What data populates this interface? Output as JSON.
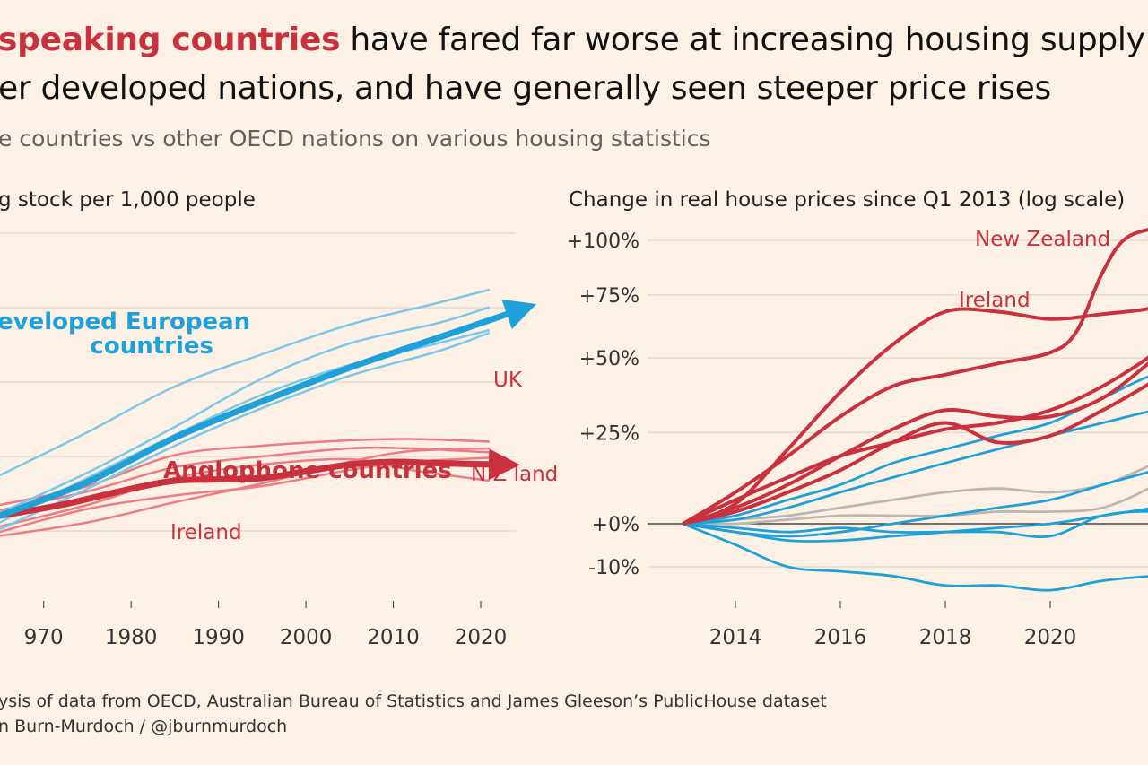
{
  "header": {
    "title_highlight": "speaking countries",
    "title_rest": " have fared far worse at increasing housing supply",
    "title_line2": "er developed nations, and have generally seen steeper price rises",
    "subtitle": "e countries vs other OECD nations on various housing statistics"
  },
  "footer": {
    "source": "ysis of data from OECD, Australian Bureau of Statistics and James Gleeson’s PublicHouse dataset",
    "credit": "n Burn-Murdoch / @jburnmurdoch"
  },
  "colors": {
    "anglophone": "#c9313f",
    "anglophone_light": "#ec7d85",
    "european": "#1ea1d9",
    "european_light": "#7cc8e9",
    "other": "#bcb6b0",
    "background": "#fdf1e6",
    "text": "#111111",
    "grid": "#d9cfc5"
  },
  "chart_data": [
    {
      "type": "line",
      "title": "g stock per 1,000 people",
      "x_ticks": [
        "970",
        "1980",
        "1990",
        "2000",
        "2010",
        "2020"
      ],
      "xlim": [
        1965,
        2024
      ],
      "grid": true,
      "annotations": [
        {
          "text": "eveloped European",
          "color": "#1ea1d9"
        },
        {
          "text": "countries",
          "color": "#1ea1d9"
        },
        {
          "text": "UK",
          "color": "#c9313f"
        },
        {
          "text": "N Z’land",
          "color": "#c9313f"
        },
        {
          "text": "Anglophone countries",
          "color": "#c9313f"
        },
        {
          "text": "Ireland",
          "color": "#c9313f"
        }
      ],
      "series": [
        {
          "group": "anglophone",
          "trend": true,
          "x": [
            1965,
            1972,
            1980,
            1985,
            1990,
            1995,
            2000,
            2005,
            2010,
            2015,
            2022
          ],
          "y": [
            0,
            8,
            20,
            26,
            27,
            28,
            33,
            38,
            40,
            39,
            38
          ]
        },
        {
          "group": "european",
          "trend": true,
          "x": [
            1965,
            1975,
            1985,
            1995,
            2005,
            2015,
            2024
          ],
          "y": [
            0,
            25,
            58,
            85,
            110,
            132,
            152
          ]
        },
        {
          "group": "anglophone",
          "x": [
            1965,
            1975,
            1985,
            1995,
            2005,
            2012,
            2021
          ],
          "y": [
            8,
            22,
            45,
            52,
            56,
            57,
            55
          ]
        },
        {
          "group": "anglophone",
          "x": [
            1965,
            1975,
            1985,
            1995,
            2005,
            2012,
            2021
          ],
          "y": [
            -8,
            8,
            28,
            38,
            42,
            34,
            26
          ]
        },
        {
          "group": "anglophone",
          "x": [
            1965,
            1975,
            1985,
            1995,
            2005,
            2012,
            2021
          ],
          "y": [
            -12,
            5,
            15,
            22,
            34,
            40,
            43
          ]
        },
        {
          "group": "anglophone",
          "x": [
            1965,
            1975,
            1985,
            1995,
            2005,
            2012,
            2021
          ],
          "y": [
            4,
            18,
            36,
            44,
            50,
            50,
            47
          ]
        },
        {
          "group": "anglophone",
          "x": [
            1965,
            1975,
            1985,
            1995,
            2005,
            2012,
            2021
          ],
          "y": [
            -15,
            -5,
            10,
            24,
            40,
            48,
            50
          ]
        },
        {
          "group": "european",
          "x": [
            1965,
            1975,
            1985,
            1995,
            2005,
            2015,
            2021
          ],
          "y": [
            30,
            62,
            96,
            120,
            142,
            158,
            168
          ]
        },
        {
          "group": "european",
          "x": [
            1965,
            1975,
            1985,
            1995,
            2005,
            2015,
            2021
          ],
          "y": [
            -5,
            28,
            60,
            90,
            112,
            128,
            138
          ]
        },
        {
          "group": "european",
          "x": [
            1965,
            1975,
            1985,
            1995,
            2005,
            2015,
            2021
          ],
          "y": [
            2,
            32,
            66,
            102,
            128,
            143,
            155
          ]
        },
        {
          "group": "european",
          "x": [
            1965,
            1975,
            1985,
            1995,
            2005,
            2015,
            2021
          ],
          "y": [
            -10,
            20,
            52,
            80,
            104,
            122,
            136
          ]
        }
      ]
    },
    {
      "type": "line",
      "title": "Change in real house prices since Q1 2013 (log scale)",
      "y_scale": "log",
      "y_ticks": [
        "+100%",
        "+75%",
        "+50%",
        "+25%",
        "+0%",
        "-10%"
      ],
      "y_tick_values": [
        100,
        75,
        50,
        25,
        0,
        -10
      ],
      "x_ticks": [
        "2014",
        "2016",
        "2018",
        "2020",
        "2"
      ],
      "xlim": [
        2012.2,
        2022.5
      ],
      "grid": true,
      "annotations": [
        {
          "text": "New Zealand",
          "color": "#c9313f"
        },
        {
          "text": "Ireland",
          "color": "#c9313f"
        }
      ],
      "series": [
        {
          "name": "New Zealand",
          "group": "anglophone",
          "x": [
            2013,
            2014,
            2015,
            2016,
            2017,
            2018,
            2019,
            2020,
            2020.5,
            2021,
            2021.5,
            2022.5
          ],
          "y": [
            0,
            8,
            18,
            30,
            40,
            44,
            48,
            52,
            60,
            85,
            102,
            108
          ]
        },
        {
          "name": "Ireland",
          "group": "anglophone",
          "x": [
            2013,
            2014,
            2015,
            2016,
            2017,
            2018,
            2019,
            2020,
            2021,
            2022,
            2022.5
          ],
          "y": [
            0,
            5,
            20,
            38,
            55,
            68,
            68,
            65,
            67,
            70,
            78
          ]
        },
        {
          "group": "anglophone",
          "x": [
            2013,
            2014,
            2015,
            2016,
            2017,
            2018,
            2019,
            2020,
            2021,
            2022,
            2022.5
          ],
          "y": [
            0,
            6,
            12,
            18,
            22,
            26,
            28,
            32,
            40,
            52,
            62
          ]
        },
        {
          "group": "anglophone",
          "x": [
            2013,
            2014,
            2015,
            2016,
            2017,
            2018,
            2019,
            2020,
            2021,
            2022,
            2022.5
          ],
          "y": [
            0,
            4,
            10,
            18,
            26,
            32,
            30,
            30,
            36,
            50,
            58
          ]
        },
        {
          "group": "anglophone",
          "x": [
            2013,
            2014,
            2015,
            2016,
            2017,
            2018,
            2019,
            2020,
            2021,
            2022,
            2022.5
          ],
          "y": [
            0,
            3,
            8,
            14,
            22,
            28,
            22,
            24,
            32,
            42,
            48
          ]
        },
        {
          "group": "european",
          "x": [
            2013,
            2014,
            2015,
            2016,
            2017,
            2018,
            2019,
            2020,
            2021,
            2022,
            2022.5
          ],
          "y": [
            0,
            2,
            6,
            10,
            16,
            20,
            24,
            28,
            36,
            44,
            42
          ]
        },
        {
          "group": "european",
          "x": [
            2013,
            2014,
            2015,
            2016,
            2017,
            2018,
            2019,
            2020,
            2021,
            2022,
            2022.5
          ],
          "y": [
            0,
            1,
            4,
            8,
            12,
            16,
            20,
            24,
            28,
            32,
            33
          ]
        },
        {
          "group": "european",
          "x": [
            2013,
            2014,
            2015,
            2016,
            2017,
            2018,
            2019,
            2020,
            2021,
            2022,
            2022.5
          ],
          "y": [
            0,
            -2,
            -3,
            -2,
            0,
            2,
            4,
            6,
            10,
            14,
            16
          ]
        },
        {
          "group": "european",
          "x": [
            2013,
            2014,
            2015,
            2016,
            2017,
            2018,
            2019,
            2020,
            2021,
            2022,
            2022.5
          ],
          "y": [
            0,
            -2,
            -4,
            -4,
            -3,
            -2,
            -1,
            0,
            2,
            4,
            5
          ]
        },
        {
          "group": "european",
          "x": [
            2013,
            2014,
            2015,
            2016,
            2017,
            2018,
            2019,
            2020,
            2021,
            2022,
            2022.5
          ],
          "y": [
            0,
            -1,
            -2,
            -1,
            -2,
            -2,
            -2,
            -3,
            2,
            3,
            1
          ]
        },
        {
          "group": "european",
          "x": [
            2013,
            2014,
            2015,
            2016,
            2017,
            2018,
            2019,
            2020,
            2021,
            2022,
            2022.5
          ],
          "y": [
            0,
            -5,
            -10,
            -11,
            -12,
            -14,
            -14,
            -15,
            -13,
            -12,
            -12
          ]
        },
        {
          "group": "other",
          "x": [
            2013,
            2014,
            2015,
            2016,
            2017,
            2018,
            2019,
            2020,
            2021,
            2022,
            2022.5
          ],
          "y": [
            0,
            1,
            2,
            4,
            6,
            8,
            9,
            8,
            10,
            16,
            20
          ]
        },
        {
          "group": "other",
          "x": [
            2013,
            2014,
            2015,
            2016,
            2017,
            2018,
            2019,
            2020,
            2021,
            2022,
            2022.5
          ],
          "y": [
            0,
            0,
            1,
            2,
            2,
            2,
            3,
            3,
            4,
            10,
            16
          ]
        }
      ]
    }
  ]
}
